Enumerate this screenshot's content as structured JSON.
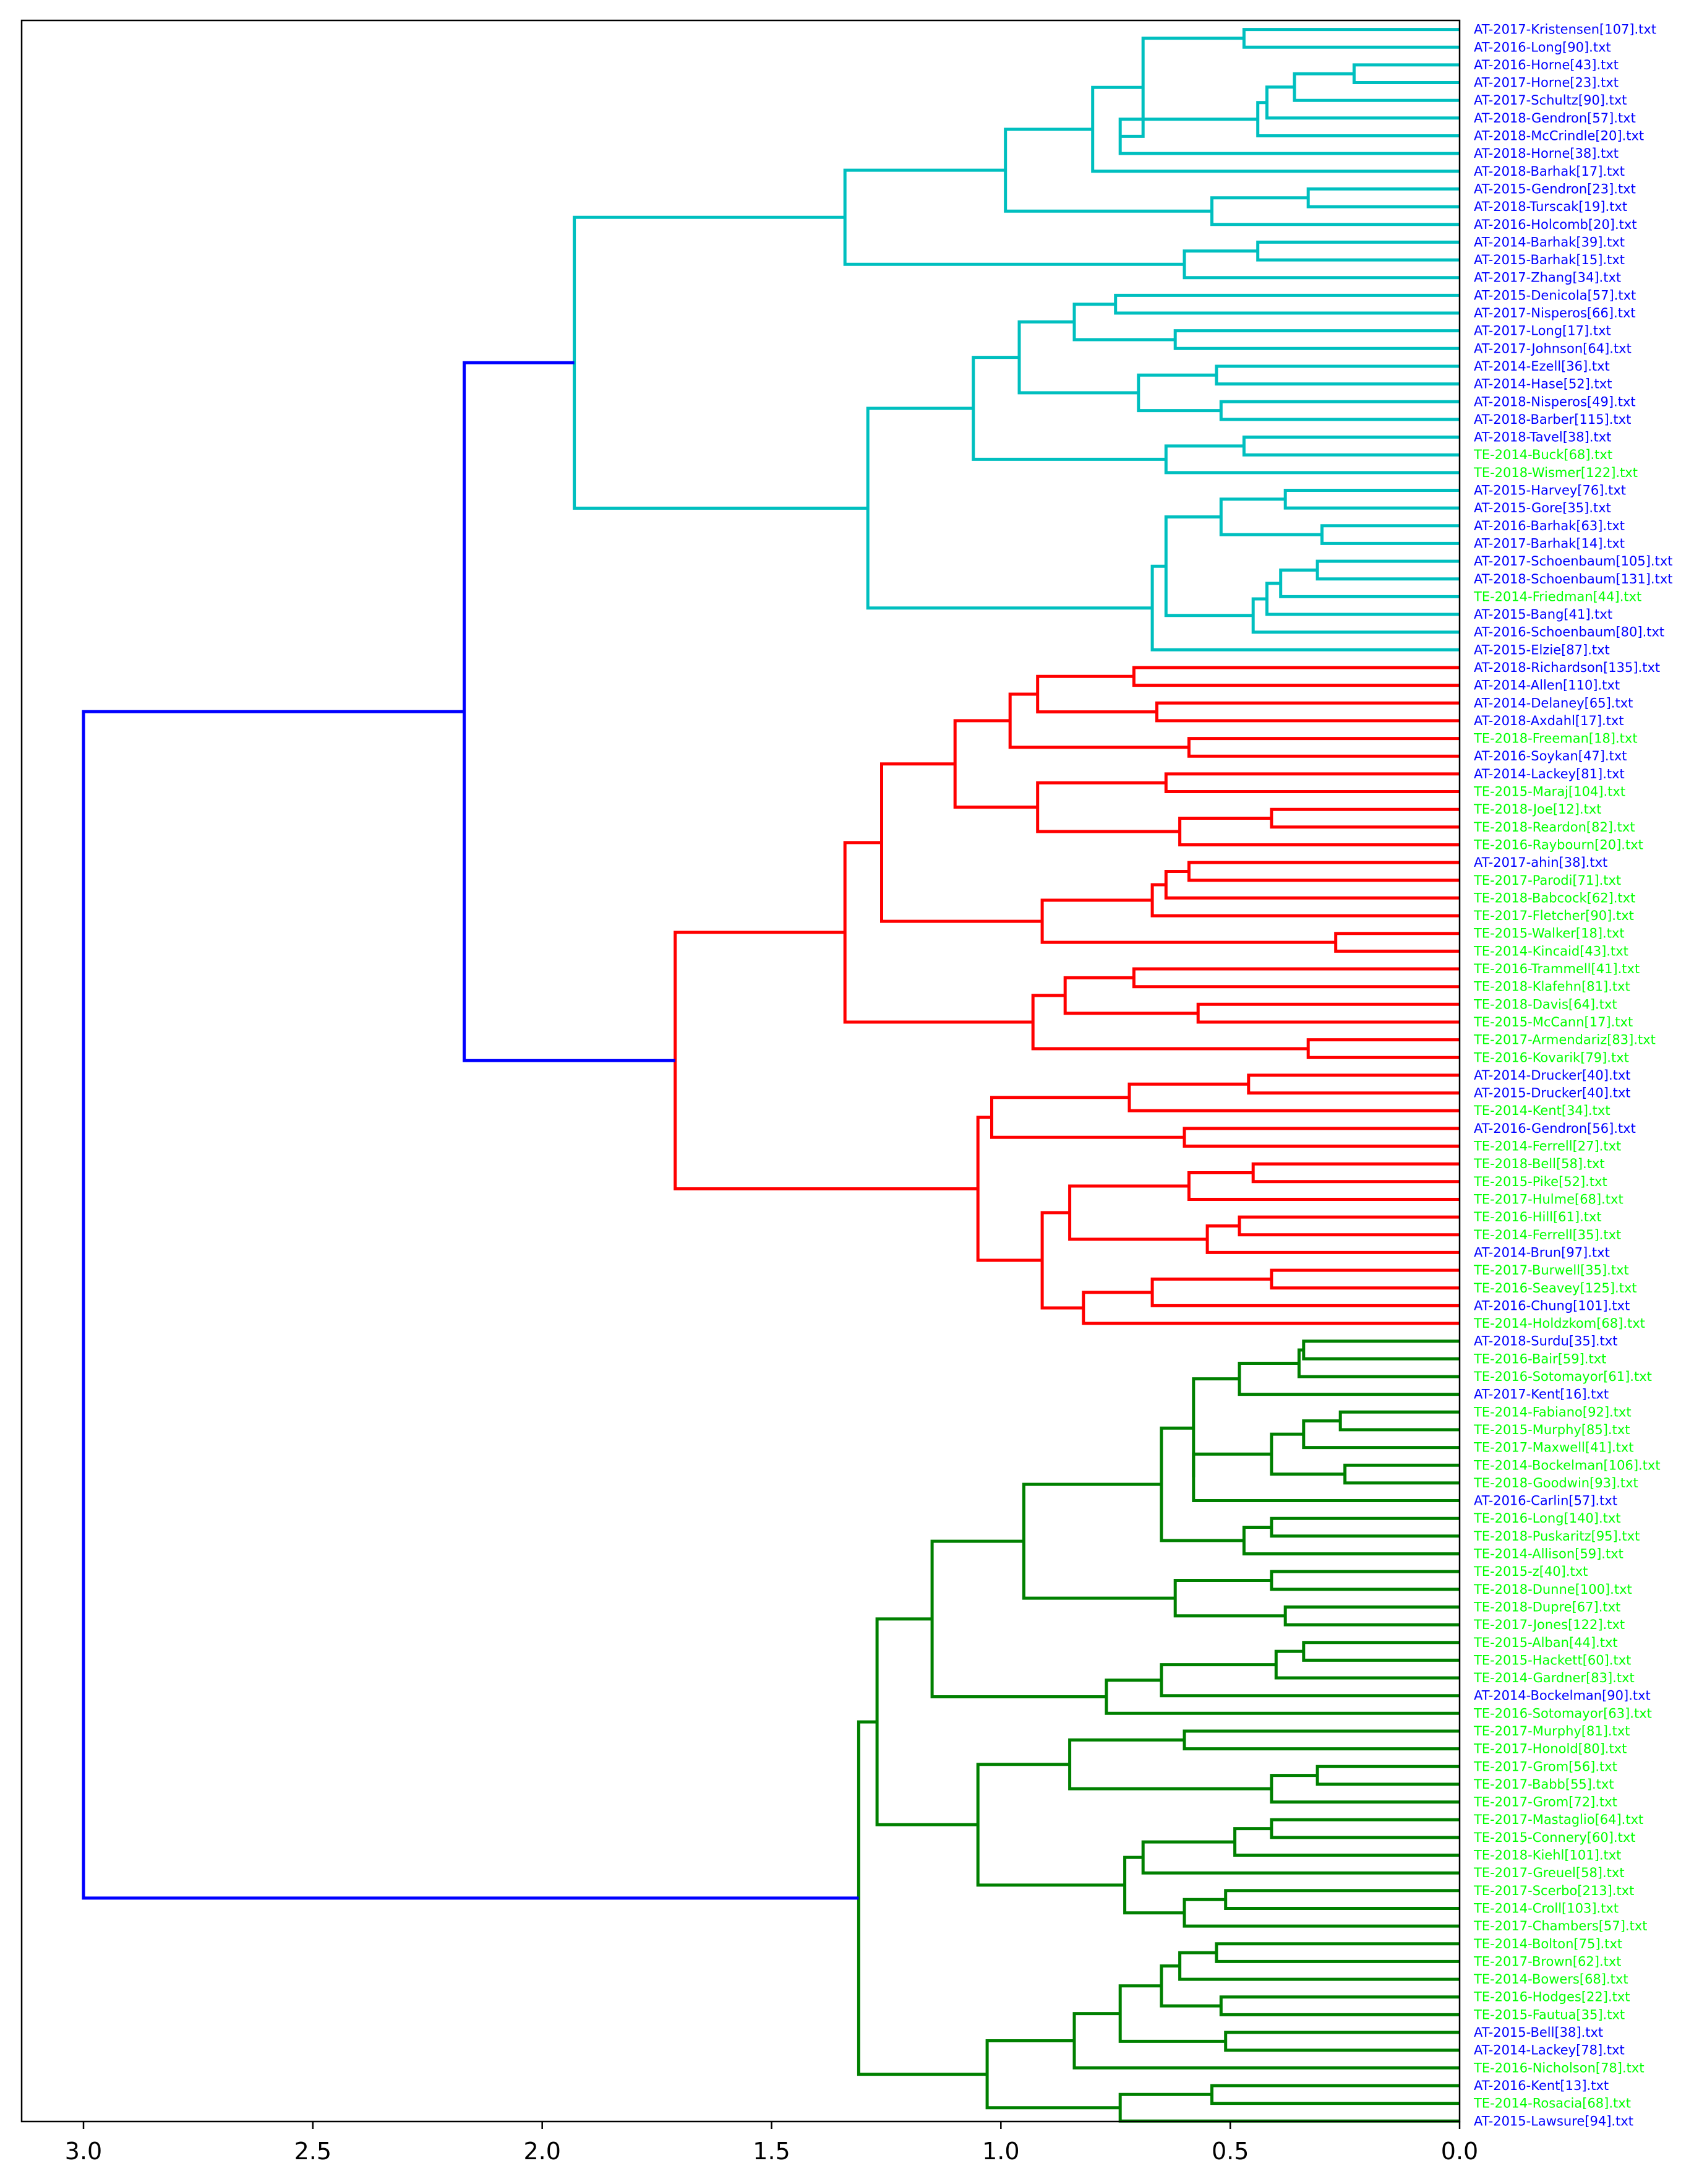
{
  "chart_data": {
    "type": "dendrogram",
    "orientation": "left",
    "xlim": [
      3.15,
      0.0
    ],
    "xticks": [
      3.0,
      2.5,
      2.0,
      1.5,
      1.0,
      0.5,
      0.0
    ],
    "xtick_labels": [
      "3.0",
      "2.5",
      "2.0",
      "1.5",
      "1.0",
      "0.5",
      "0.0"
    ],
    "label_colors": {
      "AT": "#0000ff",
      "TE": "#00ff00"
    },
    "cluster_colors": {
      "root": "#0000ff",
      "c": "#00bfbf",
      "r": "#ff0000",
      "g": "#008000"
    },
    "leaves": [
      "AT-2017-Kristensen[107].txt",
      "AT-2016-Long[90].txt",
      "AT-2016-Horne[43].txt",
      "AT-2017-Horne[23].txt",
      "AT-2017-Schultz[90].txt",
      "AT-2018-Gendron[57].txt",
      "AT-2018-McCrindle[20].txt",
      "AT-2018-Horne[38].txt",
      "AT-2018-Barhak[17].txt",
      "AT-2015-Gendron[23].txt",
      "AT-2018-Turscak[19].txt",
      "AT-2016-Holcomb[20].txt",
      "AT-2014-Barhak[39].txt",
      "AT-2015-Barhak[15].txt",
      "AT-2017-Zhang[34].txt",
      "AT-2015-Denicola[57].txt",
      "AT-2017-Nisperos[66].txt",
      "AT-2017-Long[17].txt",
      "AT-2017-Johnson[64].txt",
      "AT-2014-Ezell[36].txt",
      "AT-2014-Hase[52].txt",
      "AT-2018-Nisperos[49].txt",
      "AT-2018-Barber[115].txt",
      "AT-2018-Tavel[38].txt",
      "TE-2014-Buck[68].txt",
      "TE-2018-Wismer[122].txt",
      "AT-2015-Harvey[76].txt",
      "AT-2015-Gore[35].txt",
      "AT-2016-Barhak[63].txt",
      "AT-2017-Barhak[14].txt",
      "AT-2017-Schoenbaum[105].txt",
      "AT-2018-Schoenbaum[131].txt",
      "TE-2014-Friedman[44].txt",
      "AT-2015-Bang[41].txt",
      "AT-2016-Schoenbaum[80].txt",
      "AT-2015-Elzie[87].txt",
      "AT-2018-Richardson[135].txt",
      "AT-2014-Allen[110].txt",
      "AT-2014-Delaney[65].txt",
      "AT-2018-Axdahl[17].txt",
      "TE-2018-Freeman[18].txt",
      "AT-2016-Soykan[47].txt",
      "AT-2014-Lackey[81].txt",
      "TE-2015-Maraj[104].txt",
      "TE-2018-Joe[12].txt",
      "TE-2018-Reardon[82].txt",
      "TE-2016-Raybourn[20].txt",
      "AT-2017-ahin[38].txt",
      "TE-2017-Parodi[71].txt",
      "TE-2018-Babcock[62].txt",
      "TE-2017-Fletcher[90].txt",
      "TE-2015-Walker[18].txt",
      "TE-2014-Kincaid[43].txt",
      "TE-2016-Trammell[41].txt",
      "TE-2018-Klafehn[81].txt",
      "TE-2018-Davis[64].txt",
      "TE-2015-McCann[17].txt",
      "TE-2017-Armendariz[83].txt",
      "TE-2016-Kovarik[79].txt",
      "AT-2014-Drucker[40].txt",
      "AT-2015-Drucker[40].txt",
      "TE-2014-Kent[34].txt",
      "AT-2016-Gendron[56].txt",
      "TE-2014-Ferrell[27].txt",
      "TE-2018-Bell[58].txt",
      "TE-2015-Pike[52].txt",
      "TE-2017-Hulme[68].txt",
      "TE-2016-Hill[61].txt",
      "TE-2014-Ferrell[35].txt",
      "AT-2014-Brun[97].txt",
      "TE-2017-Burwell[35].txt",
      "TE-2016-Seavey[125].txt",
      "AT-2016-Chung[101].txt",
      "TE-2014-Holdzkom[68].txt",
      "AT-2018-Surdu[35].txt",
      "TE-2016-Bair[59].txt",
      "TE-2016-Sotomayor[61].txt",
      "AT-2017-Kent[16].txt",
      "TE-2014-Fabiano[92].txt",
      "TE-2015-Murphy[85].txt",
      "TE-2017-Maxwell[41].txt",
      "TE-2014-Bockelman[106].txt",
      "TE-2018-Goodwin[93].txt",
      "AT-2016-Carlin[57].txt",
      "TE-2016-Long[140].txt",
      "TE-2018-Puskaritz[95].txt",
      "TE-2014-Allison[59].txt",
      "TE-2015-z[40].txt",
      "TE-2018-Dunne[100].txt",
      "TE-2018-Dupre[67].txt",
      "TE-2017-Jones[122].txt",
      "TE-2015-Alban[44].txt",
      "TE-2015-Hackett[60].txt",
      "TE-2014-Gardner[83].txt",
      "AT-2014-Bockelman[90].txt",
      "TE-2016-Sotomayor[63].txt",
      "TE-2017-Murphy[81].txt",
      "TE-2017-Honold[80].txt",
      "TE-2017-Grom[56].txt",
      "TE-2017-Babb[55].txt",
      "TE-2017-Grom[72].txt",
      "TE-2017-Mastaglio[64].txt",
      "TE-2015-Connery[60].txt",
      "TE-2018-Kiehl[101].txt",
      "TE-2017-Greuel[58].txt",
      "TE-2017-Scerbo[213].txt",
      "TE-2014-Croll[103].txt",
      "TE-2017-Chambers[57].txt",
      "TE-2014-Bolton[75].txt",
      "TE-2017-Brown[62].txt",
      "TE-2014-Bowers[68].txt",
      "TE-2016-Hodges[22].txt",
      "TE-2015-Fautua[35].txt",
      "AT-2015-Bell[38].txt",
      "AT-2014-Lackey[78].txt",
      "TE-2016-Nicholson[78].txt",
      "AT-2016-Kent[13].txt",
      "TE-2014-Rosacia[68].txt",
      "AT-2015-Lawsure[94].txt"
    ],
    "merges": [
      {
        "a": "L0",
        "b": "L1",
        "h": 0.47,
        "c": "c"
      },
      {
        "a": "L2",
        "b": "L3",
        "h": 0.23,
        "c": "c"
      },
      {
        "a": "L4",
        "b": "N1",
        "h": 0.36,
        "c": "c"
      },
      {
        "a": "L5",
        "b": "N2",
        "h": 0.42,
        "c": "c"
      },
      {
        "a": "L6",
        "b": "N3",
        "h": 0.44,
        "c": "c"
      },
      {
        "a": "L7",
        "b": "N4",
        "h": 0.74,
        "c": "c"
      },
      {
        "a": "N0",
        "b": "N5",
        "h": 0.69,
        "c": "c"
      },
      {
        "a": "L8",
        "b": "N6",
        "h": 0.8,
        "c": "c"
      },
      {
        "a": "L9",
        "b": "L10",
        "h": 0.33,
        "c": "c"
      },
      {
        "a": "N8",
        "b": "L11",
        "h": 0.54,
        "c": "c"
      },
      {
        "a": "N7",
        "b": "N9",
        "h": 0.99,
        "c": "c"
      },
      {
        "a": "L12",
        "b": "L13",
        "h": 0.44,
        "c": "c"
      },
      {
        "a": "N11",
        "b": "L14",
        "h": 0.6,
        "c": "c"
      },
      {
        "a": "N10",
        "b": "N12",
        "h": 1.34,
        "c": "c"
      },
      {
        "a": "L15",
        "b": "L16",
        "h": 0.75,
        "c": "c"
      },
      {
        "a": "L17",
        "b": "L18",
        "h": 0.62,
        "c": "c"
      },
      {
        "a": "N14",
        "b": "N15",
        "h": 0.84,
        "c": "c"
      },
      {
        "a": "L19",
        "b": "L20",
        "h": 0.53,
        "c": "c"
      },
      {
        "a": "L21",
        "b": "L22",
        "h": 0.52,
        "c": "c"
      },
      {
        "a": "N17",
        "b": "N18",
        "h": 0.7,
        "c": "c"
      },
      {
        "a": "N16",
        "b": "N19",
        "h": 0.96,
        "c": "c"
      },
      {
        "a": "L23",
        "b": "L24",
        "h": 0.47,
        "c": "c"
      },
      {
        "a": "N21",
        "b": "L25",
        "h": 0.64,
        "c": "c"
      },
      {
        "a": "N20",
        "b": "N22",
        "h": 1.06,
        "c": "c"
      },
      {
        "a": "L26",
        "b": "L27",
        "h": 0.38,
        "c": "c"
      },
      {
        "a": "L28",
        "b": "L29",
        "h": 0.3,
        "c": "c"
      },
      {
        "a": "N24",
        "b": "N25",
        "h": 0.52,
        "c": "c"
      },
      {
        "a": "L30",
        "b": "L31",
        "h": 0.31,
        "c": "c"
      },
      {
        "a": "N27",
        "b": "L32",
        "h": 0.39,
        "c": "c"
      },
      {
        "a": "N28",
        "b": "L33",
        "h": 0.42,
        "c": "c"
      },
      {
        "a": "N29",
        "b": "L34",
        "h": 0.45,
        "c": "c"
      },
      {
        "a": "N26",
        "b": "N30",
        "h": 0.64,
        "c": "c"
      },
      {
        "a": "N31",
        "b": "L35",
        "h": 0.67,
        "c": "c"
      },
      {
        "a": "N23",
        "b": "N32",
        "h": 1.29,
        "c": "c"
      },
      {
        "a": "N13",
        "b": "N33",
        "h": 1.93,
        "c": "c"
      },
      {
        "a": "L36",
        "b": "L37",
        "h": 0.71,
        "c": "r"
      },
      {
        "a": "L38",
        "b": "L39",
        "h": 0.66,
        "c": "r"
      },
      {
        "a": "N35",
        "b": "N36",
        "h": 0.92,
        "c": "r"
      },
      {
        "a": "L40",
        "b": "L41",
        "h": 0.59,
        "c": "r"
      },
      {
        "a": "N37",
        "b": "N38",
        "h": 0.98,
        "c": "r"
      },
      {
        "a": "L42",
        "b": "L43",
        "h": 0.64,
        "c": "r"
      },
      {
        "a": "L44",
        "b": "L45",
        "h": 0.41,
        "c": "r"
      },
      {
        "a": "N41",
        "b": "L46",
        "h": 0.61,
        "c": "r"
      },
      {
        "a": "N40",
        "b": "N42",
        "h": 0.92,
        "c": "r"
      },
      {
        "a": "N39",
        "b": "N43",
        "h": 1.1,
        "c": "r"
      },
      {
        "a": "L47",
        "b": "L48",
        "h": 0.59,
        "c": "r"
      },
      {
        "a": "N45",
        "b": "L49",
        "h": 0.64,
        "c": "r"
      },
      {
        "a": "N46",
        "b": "L50",
        "h": 0.67,
        "c": "r"
      },
      {
        "a": "L51",
        "b": "L52",
        "h": 0.27,
        "c": "r"
      },
      {
        "a": "N47",
        "b": "N48",
        "h": 0.91,
        "c": "r"
      },
      {
        "a": "N44",
        "b": "N49",
        "h": 1.26,
        "c": "r"
      },
      {
        "a": "L53",
        "b": "L54",
        "h": 0.71,
        "c": "r"
      },
      {
        "a": "L55",
        "b": "L56",
        "h": 0.57,
        "c": "r"
      },
      {
        "a": "N51",
        "b": "N52",
        "h": 0.86,
        "c": "r"
      },
      {
        "a": "L57",
        "b": "L58",
        "h": 0.33,
        "c": "r"
      },
      {
        "a": "N53",
        "b": "N54",
        "h": 0.93,
        "c": "r"
      },
      {
        "a": "N50",
        "b": "N55",
        "h": 1.34,
        "c": "r"
      },
      {
        "a": "L59",
        "b": "L60",
        "h": 0.46,
        "c": "r"
      },
      {
        "a": "N57",
        "b": "L61",
        "h": 0.72,
        "c": "r"
      },
      {
        "a": "L62",
        "b": "L63",
        "h": 0.6,
        "c": "r"
      },
      {
        "a": "N58",
        "b": "N59",
        "h": 1.02,
        "c": "r"
      },
      {
        "a": "L64",
        "b": "L65",
        "h": 0.45,
        "c": "r"
      },
      {
        "a": "N61",
        "b": "L66",
        "h": 0.59,
        "c": "r"
      },
      {
        "a": "L67",
        "b": "L68",
        "h": 0.48,
        "c": "r"
      },
      {
        "a": "N63",
        "b": "L69",
        "h": 0.55,
        "c": "r"
      },
      {
        "a": "N62",
        "b": "N64",
        "h": 0.85,
        "c": "r"
      },
      {
        "a": "L70",
        "b": "L71",
        "h": 0.41,
        "c": "r"
      },
      {
        "a": "N66",
        "b": "L72",
        "h": 0.67,
        "c": "r"
      },
      {
        "a": "N67",
        "b": "L73",
        "h": 0.82,
        "c": "r"
      },
      {
        "a": "N65",
        "b": "N68",
        "h": 0.91,
        "c": "r"
      },
      {
        "a": "N60",
        "b": "N69",
        "h": 1.05,
        "c": "r"
      },
      {
        "a": "N56",
        "b": "N70",
        "h": 1.71,
        "c": "r"
      },
      {
        "a": "N34",
        "b": "N71",
        "h": 2.17,
        "c": "root"
      },
      {
        "a": "L74",
        "b": "L75",
        "h": 0.34,
        "c": "g"
      },
      {
        "a": "N73",
        "b": "L76",
        "h": 0.35,
        "c": "g"
      },
      {
        "a": "N74",
        "b": "L77",
        "h": 0.48,
        "c": "g"
      },
      {
        "a": "L78",
        "b": "L79",
        "h": 0.26,
        "c": "g"
      },
      {
        "a": "N76",
        "b": "L80",
        "h": 0.34,
        "c": "g"
      },
      {
        "a": "L81",
        "b": "L82",
        "h": 0.25,
        "c": "g"
      },
      {
        "a": "N77",
        "b": "N78",
        "h": 0.41,
        "c": "g"
      },
      {
        "a": "N79",
        "b": "L83",
        "h": 0.58,
        "c": "g"
      },
      {
        "a": "N75",
        "b": "N80",
        "h": 0.58,
        "c": "g"
      },
      {
        "a": "L84",
        "b": "L85",
        "h": 0.41,
        "c": "g"
      },
      {
        "a": "N82",
        "b": "L86",
        "h": 0.47,
        "c": "g"
      },
      {
        "a": "N81",
        "b": "N83",
        "h": 0.65,
        "c": "g"
      },
      {
        "a": "L87",
        "b": "L88",
        "h": 0.41,
        "c": "g"
      },
      {
        "a": "L89",
        "b": "L90",
        "h": 0.38,
        "c": "g"
      },
      {
        "a": "N85",
        "b": "N86",
        "h": 0.62,
        "c": "g"
      },
      {
        "a": "N84",
        "b": "N87",
        "h": 0.95,
        "c": "g"
      },
      {
        "a": "L91",
        "b": "L92",
        "h": 0.34,
        "c": "g"
      },
      {
        "a": "N89",
        "b": "L93",
        "h": 0.4,
        "c": "g"
      },
      {
        "a": "N90",
        "b": "L94",
        "h": 0.65,
        "c": "g"
      },
      {
        "a": "N91",
        "b": "L95",
        "h": 0.77,
        "c": "g"
      },
      {
        "a": "N88",
        "b": "N92",
        "h": 1.15,
        "c": "g"
      },
      {
        "a": "L96",
        "b": "L97",
        "h": 0.6,
        "c": "g"
      },
      {
        "a": "L98",
        "b": "L99",
        "h": 0.31,
        "c": "g"
      },
      {
        "a": "N95",
        "b": "L100",
        "h": 0.41,
        "c": "g"
      },
      {
        "a": "N94",
        "b": "N96",
        "h": 0.85,
        "c": "g"
      },
      {
        "a": "L101",
        "b": "L102",
        "h": 0.41,
        "c": "g"
      },
      {
        "a": "N98",
        "b": "L103",
        "h": 0.49,
        "c": "g"
      },
      {
        "a": "N99",
        "b": "L104",
        "h": 0.69,
        "c": "g"
      },
      {
        "a": "L105",
        "b": "L106",
        "h": 0.51,
        "c": "g"
      },
      {
        "a": "N101",
        "b": "L107",
        "h": 0.6,
        "c": "g"
      },
      {
        "a": "N100",
        "b": "N102",
        "h": 0.73,
        "c": "g"
      },
      {
        "a": "N97",
        "b": "N103",
        "h": 1.05,
        "c": "g"
      },
      {
        "a": "N93",
        "b": "N104",
        "h": 1.27,
        "c": "g"
      },
      {
        "a": "L108",
        "b": "L109",
        "h": 0.53,
        "c": "g"
      },
      {
        "a": "N106",
        "b": "L110",
        "h": 0.61,
        "c": "g"
      },
      {
        "a": "L111",
        "b": "L112",
        "h": 0.52,
        "c": "g"
      },
      {
        "a": "N107",
        "b": "N108",
        "h": 0.65,
        "c": "g"
      },
      {
        "a": "L113",
        "b": "L114",
        "h": 0.51,
        "c": "g"
      },
      {
        "a": "N109",
        "b": "N110",
        "h": 0.74,
        "c": "g"
      },
      {
        "a": "N111",
        "b": "L115",
        "h": 0.84,
        "c": "g"
      },
      {
        "a": "L116",
        "b": "L117",
        "h": 0.54,
        "c": "g"
      },
      {
        "a": "N113",
        "b": "L118",
        "h": 0.74,
        "c": "g"
      },
      {
        "a": "N112",
        "b": "N114",
        "h": 1.03,
        "c": "g"
      },
      {
        "a": "N105",
        "b": "N115",
        "h": 1.31,
        "c": "g"
      },
      {
        "a": "N72",
        "b": "N116",
        "h": 3.0,
        "c": "root"
      }
    ]
  }
}
